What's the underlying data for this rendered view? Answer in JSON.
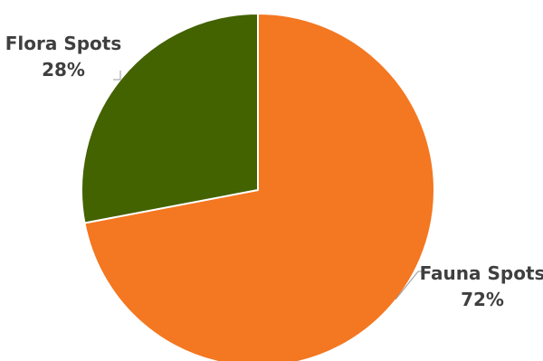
{
  "chart_data": {
    "type": "pie",
    "title": "",
    "categories": [
      "Fauna Spots",
      "Flora Spots"
    ],
    "values": [
      72,
      28
    ],
    "value_labels": [
      "72%",
      "28%"
    ],
    "colors": [
      "#f47721",
      "#436200"
    ],
    "start_angle_deg": 0,
    "direction": "clockwise",
    "legend": "none"
  }
}
